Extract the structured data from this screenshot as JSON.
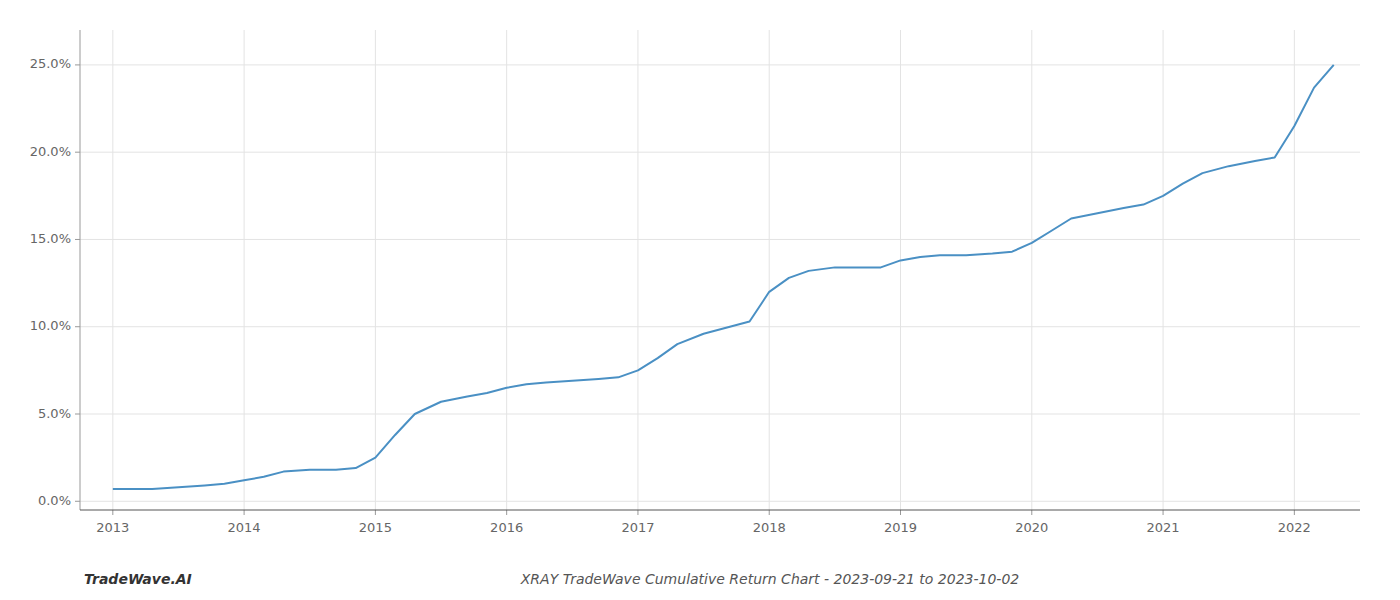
{
  "chart_data": {
    "type": "line",
    "title": "XRAY TradeWave Cumulative Return Chart - 2023-09-21 to 2023-10-02",
    "annotations": [
      "TradeWave.AI"
    ],
    "color": "#4a90c4",
    "grid": true,
    "x": [
      2013.0,
      2013.15,
      2013.3,
      2013.5,
      2013.7,
      2013.85,
      2014.0,
      2014.15,
      2014.3,
      2014.5,
      2014.7,
      2014.85,
      2015.0,
      2015.15,
      2015.3,
      2015.5,
      2015.7,
      2015.85,
      2016.0,
      2016.15,
      2016.3,
      2016.5,
      2016.7,
      2016.85,
      2017.0,
      2017.15,
      2017.3,
      2017.5,
      2017.7,
      2017.85,
      2018.0,
      2018.15,
      2018.3,
      2018.5,
      2018.7,
      2018.85,
      2019.0,
      2019.15,
      2019.3,
      2019.5,
      2019.7,
      2019.85,
      2020.0,
      2020.15,
      2020.3,
      2020.5,
      2020.7,
      2020.85,
      2021.0,
      2021.15,
      2021.3,
      2021.5,
      2021.7,
      2021.85,
      2022.0,
      2022.15,
      2022.3
    ],
    "values": [
      0.007,
      0.007,
      0.007,
      0.008,
      0.009,
      0.01,
      0.012,
      0.014,
      0.017,
      0.018,
      0.018,
      0.019,
      0.025,
      0.038,
      0.05,
      0.057,
      0.06,
      0.062,
      0.065,
      0.067,
      0.068,
      0.069,
      0.07,
      0.071,
      0.075,
      0.082,
      0.09,
      0.096,
      0.1,
      0.103,
      0.12,
      0.128,
      0.132,
      0.134,
      0.134,
      0.134,
      0.138,
      0.14,
      0.141,
      0.141,
      0.142,
      0.143,
      0.148,
      0.155,
      0.162,
      0.165,
      0.168,
      0.17,
      0.175,
      0.182,
      0.188,
      0.192,
      0.195,
      0.197,
      0.215,
      0.237,
      0.25
    ],
    "xlim": [
      2012.75,
      2022.5
    ],
    "ylim": [
      -0.005,
      0.27
    ],
    "xticks": [
      2013,
      2014,
      2015,
      2016,
      2017,
      2018,
      2019,
      2020,
      2021,
      2022
    ],
    "yticks": [
      {
        "value": 0.0,
        "label": "0.0%"
      },
      {
        "value": 0.05,
        "label": "5.0%"
      },
      {
        "value": 0.1,
        "label": "10.0%"
      },
      {
        "value": 0.15,
        "label": "15.0%"
      },
      {
        "value": 0.2,
        "label": "20.0%"
      },
      {
        "value": 0.25,
        "label": "25.0%"
      }
    ]
  }
}
